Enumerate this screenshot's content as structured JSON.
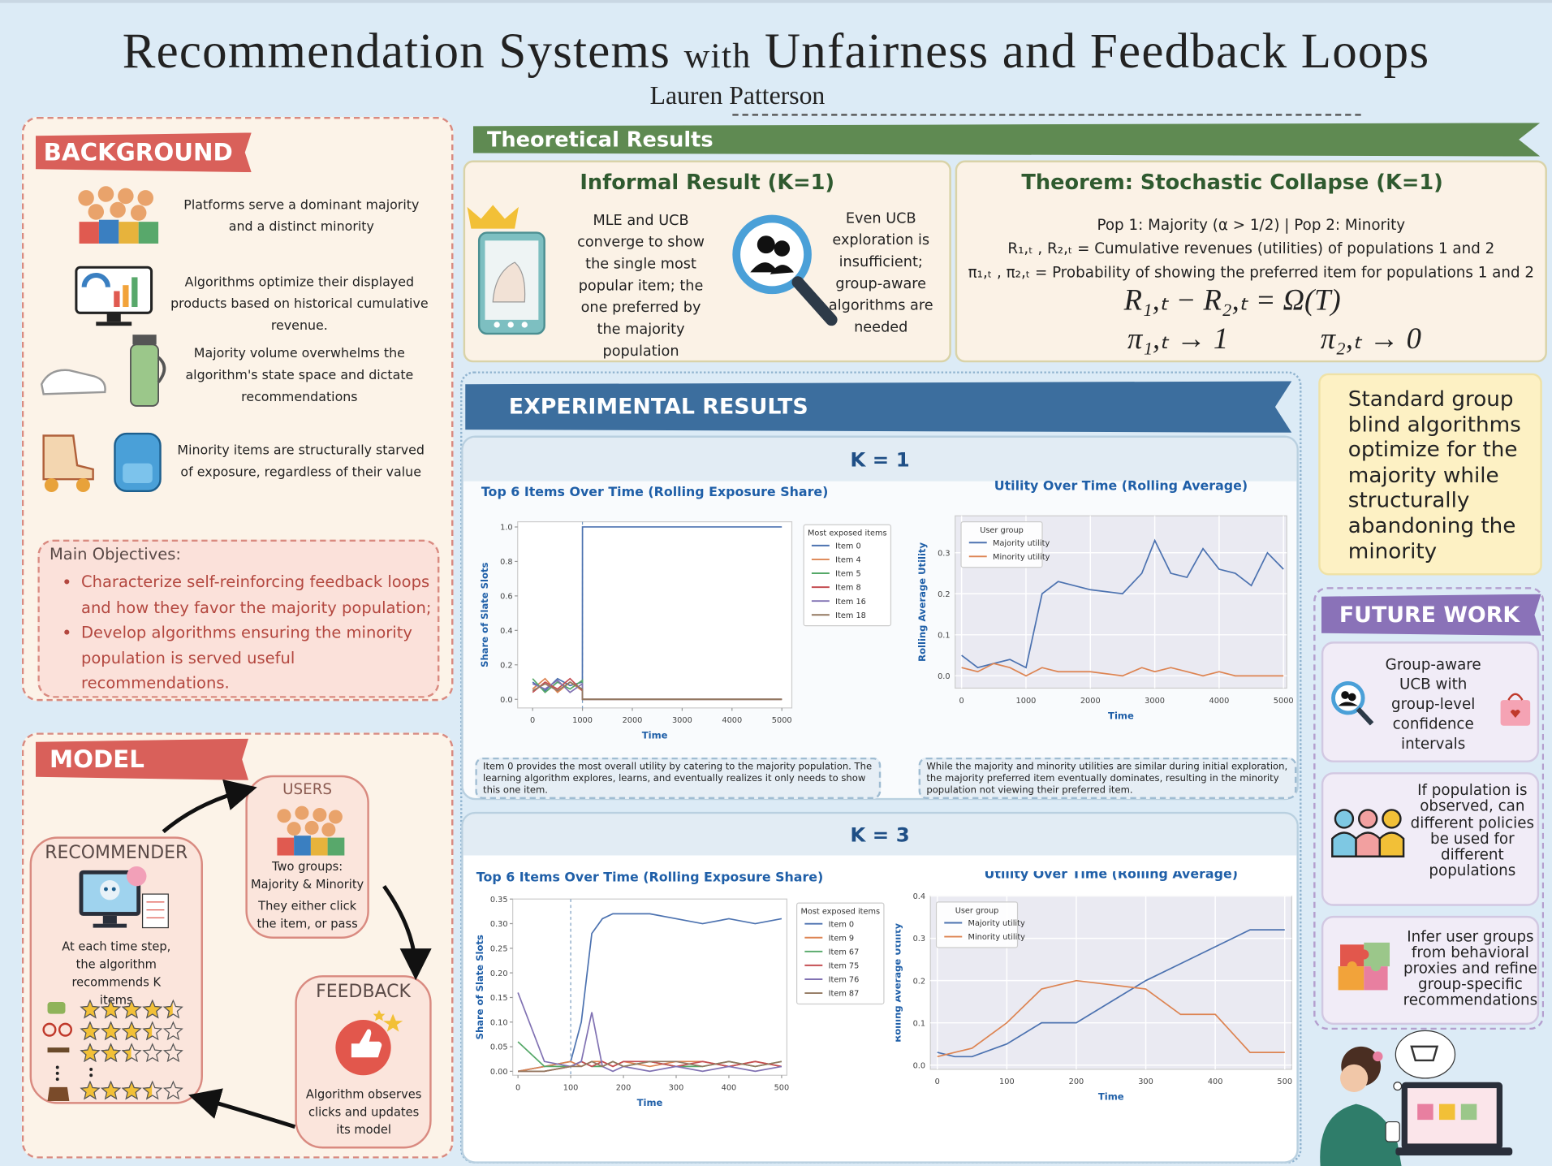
{
  "header": {
    "title_part1": "Recommendation Systems",
    "title_with": "with",
    "title_part2": "Unfairness and Feedback Loops",
    "author": "Lauren Patterson"
  },
  "background": {
    "heading": "BACKGROUND",
    "items": [
      "Platforms serve a dominant majority and a distinct minority",
      "Algorithms optimize their displayed products based on historical cumulative revenue.",
      "Majority volume overwhelms the algorithm's state space and dictate recommendations",
      "Minority items are structurally starved of exposure, regardless of their value"
    ]
  },
  "objectives": {
    "heading": "Main Objectives:",
    "items": [
      "Characterize self-reinforcing feedback loops and how they favor the majority population;",
      "Develop algorithms ensuring the minority population is served useful recommendations."
    ]
  },
  "model": {
    "heading": "MODEL",
    "users": {
      "title": "USERS",
      "line1": "Two groups:",
      "line2": "Majority & Minority",
      "line3": "They either click the item, or pass"
    },
    "recommender": {
      "title": "RECOMMENDER",
      "text": "At each time step, the algorithm recommends K items",
      "ratings": [
        4.5,
        3.5,
        2.5,
        3.5
      ]
    },
    "feedback": {
      "title": "FEEDBACK",
      "text": "Algorithm observes clicks and updates its model"
    }
  },
  "theory": {
    "heading": "Theoretical Results",
    "informal": {
      "title": "Informal Result (K=1)",
      "text1": "MLE and UCB converge to show the single most popular item; the one preferred by the majority population",
      "text2": "Even UCB exploration is insufficient; group-aware algorithms are needed"
    },
    "theorem": {
      "title": "Theorem: Stochastic Collapse (K=1)",
      "populations": "Pop 1: Majority (α > 1/2) | Pop 2: Minority",
      "revenue_def": "R₁,ₜ , R₂,ₜ = Cumulative revenues (utilities) of populations 1 and 2",
      "probability_def": "π₁,ₜ , π₂,ₜ = Probability of showing the preferred item for populations 1 and 2",
      "formula": "R₁,ₜ − R₂,ₜ = Ω(T)",
      "limit1": "π₁,ₜ → 1",
      "limit2": "π₂,ₜ → 0"
    }
  },
  "experiments": {
    "heading": "EXPERIMENTAL RESULTS",
    "k1": {
      "label": "K = 1",
      "charts": [
        {
          "type": "line",
          "title": "Top 6 Items Over Time (Rolling Exposure Share)",
          "x_label": "Time",
          "y_label": "Share of Slate Slots",
          "legend_title": "Most exposed items",
          "legend": "outside right",
          "grid": false,
          "x": [
            0,
            250,
            500,
            750,
            999,
            1000,
            2000,
            3000,
            4000,
            5000
          ],
          "xlim": [
            -300,
            5200
          ],
          "ylim": [
            -0.05,
            1.03
          ],
          "vline": 1000,
          "xticks": [
            0,
            1000,
            2000,
            3000,
            4000,
            5000
          ],
          "yticks": [
            {
              "value": 0,
              "label": "0.0"
            },
            0.2,
            0.4,
            0.6,
            0.8,
            {
              "value": 1,
              "label": "1.0"
            }
          ],
          "series": [
            {
              "name": "Item 0",
              "color": "#4c72b0",
              "values": [
                0.1,
                0.05,
                0.12,
                0.08,
                0.1,
                1,
                1,
                1,
                1,
                1
              ]
            },
            {
              "name": "Item 4",
              "color": "#dd8452",
              "values": [
                0.06,
                0.12,
                0.04,
                0.1,
                0.05,
                0,
                0,
                0,
                0,
                0
              ]
            },
            {
              "name": "Item 5",
              "color": "#55a868",
              "values": [
                0.12,
                0.04,
                0.1,
                0.06,
                0.11,
                0,
                0,
                0,
                0,
                0
              ]
            },
            {
              "name": "Item 8",
              "color": "#c44e52",
              "values": [
                0.04,
                0.1,
                0.06,
                0.12,
                0.05,
                0,
                0,
                0,
                0,
                0
              ]
            },
            {
              "name": "Item 16",
              "color": "#8172b3",
              "values": [
                0.09,
                0.06,
                0.11,
                0.04,
                0.09,
                0,
                0,
                0,
                0,
                0
              ]
            },
            {
              "name": "Item 18",
              "color": "#937860",
              "values": [
                0.05,
                0.09,
                0.05,
                0.1,
                0.06,
                0,
                0,
                0,
                0,
                0
              ]
            }
          ]
        },
        {
          "type": "line",
          "title": "Utility Over Time (Rolling Average)",
          "x_label": "Time",
          "y_label": "Rolling Average Utility",
          "legend_title": "User group",
          "legend": "upper left",
          "grid": true,
          "x": [
            0,
            250,
            500,
            750,
            1000,
            1250,
            1500,
            2000,
            2500,
            2800,
            3000,
            3250,
            3500,
            3750,
            4000,
            4250,
            4500,
            4750,
            5000
          ],
          "xlim": [
            -100,
            5050
          ],
          "ylim": [
            -0.03,
            0.39
          ],
          "xticks": [
            0,
            1000,
            2000,
            3000,
            4000,
            5000
          ],
          "yticks": [
            {
              "value": 0,
              "label": "0.0"
            },
            0.1,
            0.2,
            0.3
          ],
          "series": [
            {
              "name": "Majority utility",
              "color": "#4c72b0",
              "values": [
                0.05,
                0.02,
                0.03,
                0.04,
                0.02,
                0.2,
                0.23,
                0.21,
                0.2,
                0.25,
                0.33,
                0.25,
                0.24,
                0.31,
                0.26,
                0.25,
                0.22,
                0.3,
                0.26
              ]
            },
            {
              "name": "Minority utility",
              "color": "#dd8452",
              "values": [
                0.02,
                0.01,
                0.03,
                0.02,
                0.0,
                0.02,
                0.01,
                0.01,
                0.0,
                0.02,
                0.01,
                0.02,
                0.01,
                0.0,
                0.01,
                0.0,
                0.0,
                0.0,
                0.0
              ]
            }
          ]
        }
      ],
      "captions": [
        "Item 0 provides the most overall utility by catering to the majority population. The learning algorithm explores, learns, and eventually realizes it only needs to show this one item.",
        "While the majority and minority utilities are similar during initial exploration, the majority preferred item eventually dominates, resulting in the minority population not viewing their preferred item."
      ]
    },
    "k3": {
      "label": "K = 3",
      "charts": [
        {
          "type": "line",
          "title": "Top 6 Items Over Time (Rolling Exposure Share)",
          "x_label": "Time",
          "y_label": "Share of Slate Slots",
          "legend_title": "Most exposed items",
          "legend": "outside right",
          "grid": false,
          "x": [
            0,
            50,
            100,
            120,
            140,
            160,
            180,
            200,
            250,
            300,
            350,
            400,
            450,
            500
          ],
          "xlim": [
            -10,
            510
          ],
          "ylim": [
            -0.008,
            0.35
          ],
          "vline": 100,
          "xticks": [
            0,
            100,
            200,
            300,
            400,
            500
          ],
          "yticks": [
            {
              "value": 0,
              "label": "0.00"
            },
            0.05,
            {
              "value": 0.1,
              "label": "0.10"
            },
            0.15,
            {
              "value": 0.2,
              "label": "0.20"
            },
            0.25,
            {
              "value": 0.3,
              "label": "0.30"
            },
            0.35
          ],
          "series": [
            {
              "name": "Item 0",
              "color": "#4c72b0",
              "values": [
                0,
                0.01,
                0.02,
                0.1,
                0.28,
                0.31,
                0.32,
                0.32,
                0.32,
                0.31,
                0.3,
                0.31,
                0.3,
                0.31
              ]
            },
            {
              "name": "Item 9",
              "color": "#dd8452",
              "values": [
                0,
                0.01,
                0.02,
                0.01,
                0.02,
                0.02,
                0.01,
                0.02,
                0.01,
                0.02,
                0.02,
                0.01,
                0.02,
                0.01
              ]
            },
            {
              "name": "Item 67",
              "color": "#55a868",
              "values": [
                0.06,
                0.01,
                0.01,
                0.02,
                0.01,
                0.01,
                0.02,
                0.01,
                0.02,
                0.01,
                0.01,
                0.02,
                0.01,
                0.02
              ]
            },
            {
              "name": "Item 75",
              "color": "#c44e52",
              "values": [
                0,
                0,
                0.01,
                0.02,
                0.01,
                0.02,
                0.01,
                0.02,
                0.02,
                0.01,
                0.02,
                0.01,
                0.02,
                0.01
              ]
            },
            {
              "name": "Item 76",
              "color": "#8172b3",
              "values": [
                0.16,
                0.02,
                0.01,
                0.02,
                0.12,
                0.01,
                0,
                0.01,
                0,
                0.01,
                0,
                0.01,
                0,
                0.01
              ]
            },
            {
              "name": "Item 87",
              "color": "#937860",
              "values": [
                0,
                0,
                0.01,
                0.01,
                0.02,
                0.01,
                0.02,
                0.01,
                0.02,
                0.02,
                0.01,
                0.02,
                0.01,
                0.02
              ]
            }
          ]
        },
        {
          "type": "line",
          "title": "Utility Over Time (Rolling Average)",
          "x_label": "Time",
          "y_label": "Rolling Average Utility",
          "legend_title": "User group",
          "legend": "upper left",
          "grid": true,
          "x": [
            0,
            25,
            50,
            100,
            150,
            200,
            250,
            300,
            350,
            400,
            450,
            500
          ],
          "xlim": [
            -10,
            510
          ],
          "ylim": [
            -0.01,
            0.4
          ],
          "xticks": [
            0,
            100,
            200,
            300,
            400,
            500
          ],
          "yticks": [
            {
              "value": 0,
              "label": "0.0"
            },
            0.1,
            0.2,
            0.3,
            0.4
          ],
          "series": [
            {
              "name": "Majority utility",
              "color": "#4c72b0",
              "values": [
                0.03,
                0.02,
                0.02,
                0.05,
                0.1,
                0.1,
                0.15,
                0.2,
                0.24,
                0.28,
                0.32,
                0.32
              ]
            },
            {
              "name": "Minority utility",
              "color": "#dd8452",
              "values": [
                0.02,
                0.03,
                0.04,
                0.1,
                0.18,
                0.2,
                0.19,
                0.18,
                0.12,
                0.12,
                0.03,
                0.03
              ]
            }
          ]
        }
      ]
    }
  },
  "conclusion": "Standard group blind algorithms optimize for the majority while structurally abandoning the minority",
  "future_work": {
    "heading": "FUTURE WORK",
    "items": [
      "Group-aware UCB with group-level confidence intervals",
      "If population is observed, can different policies be used for different populations",
      "Infer user groups from behavioral proxies and refine group-specific recommendations"
    ]
  }
}
